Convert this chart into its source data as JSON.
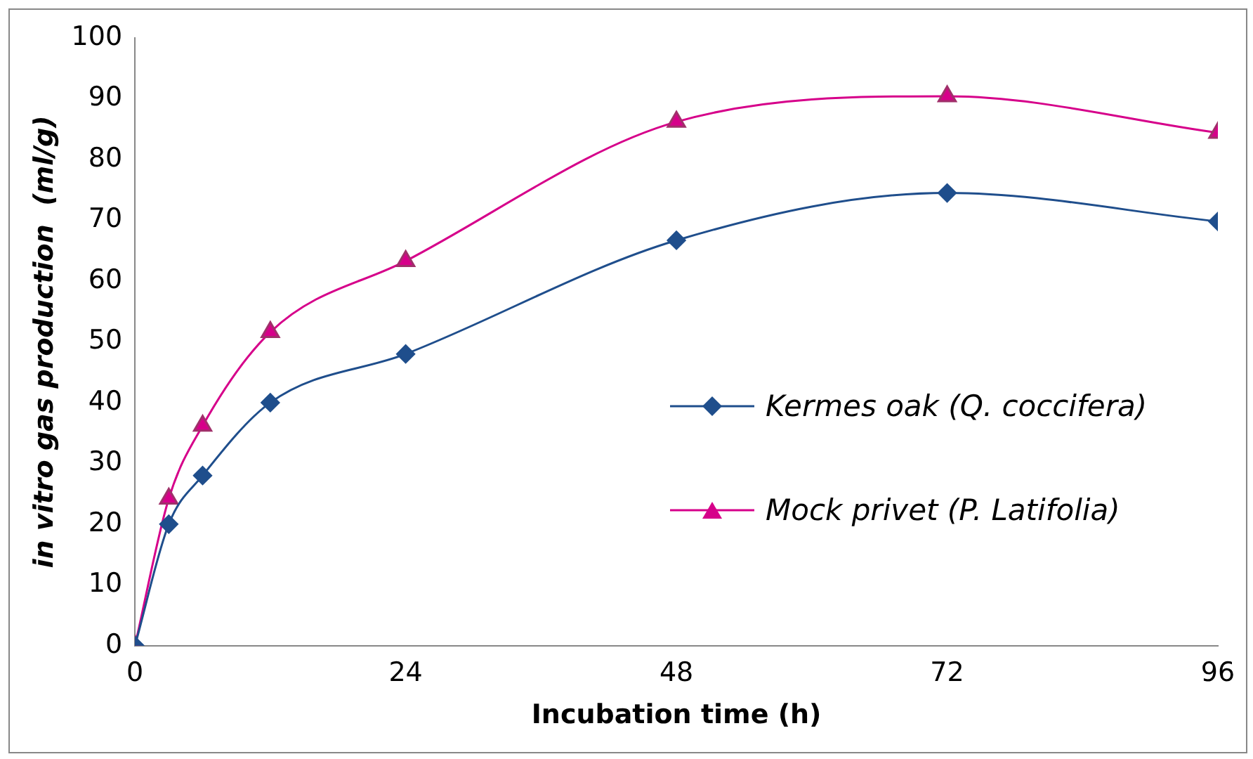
{
  "chart_data": {
    "type": "line",
    "xlabel": "Incubation time (h)",
    "ylabel": "in vitro gas production  (ml/g)",
    "x": [
      0,
      3,
      6,
      12,
      24,
      48,
      72,
      96
    ],
    "series": [
      {
        "name": "Kermes oak (Q. coccifera)",
        "color": "#1f4e8c",
        "marker": "diamond",
        "values": [
          0,
          20,
          28,
          40,
          48,
          66.7,
          74.5,
          69.8
        ]
      },
      {
        "name": "Mock privet (P. Latifolia)",
        "color": "#d6008a",
        "marker": "triangle",
        "values": [
          0,
          24.2,
          36.2,
          51.6,
          63.3,
          86.2,
          90.4,
          84.4
        ]
      }
    ],
    "xlim": [
      0,
      96
    ],
    "xticks": [
      0,
      24,
      48,
      72,
      96
    ],
    "ylim": [
      0,
      100
    ],
    "yticks": [
      0,
      10,
      20,
      30,
      40,
      50,
      60,
      70,
      80,
      90,
      100
    ],
    "grid": false,
    "legend": "right",
    "line_style": "solid"
  }
}
